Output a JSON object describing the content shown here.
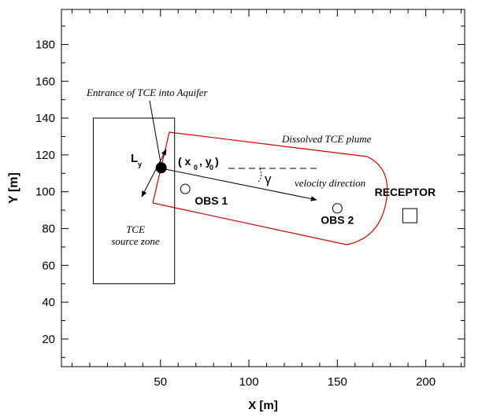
{
  "chart_data": {
    "type": "diagram",
    "xlabel": "X [m]",
    "ylabel": "Y [m]",
    "xlim": [
      -6,
      222
    ],
    "ylim": [
      5,
      199
    ],
    "xticks": [
      50,
      100,
      150,
      200
    ],
    "yticks": [
      20,
      40,
      60,
      80,
      100,
      120,
      140,
      160,
      180
    ],
    "xminorticks": [
      0,
      10,
      20,
      30,
      40,
      60,
      70,
      80,
      90,
      110,
      120,
      130,
      140,
      160,
      170,
      180,
      190,
      210,
      220
    ],
    "yminorticks": [
      10,
      30,
      50,
      70,
      90,
      110,
      130,
      150,
      170,
      190
    ],
    "source_zone": {
      "label": "TCE",
      "sublabel": "source zone",
      "x": [
        12,
        58
      ],
      "y": [
        50,
        140
      ]
    },
    "entrance": {
      "label": "Entrance of TCE into Aquifer",
      "x": 50.4,
      "y": 113
    },
    "origin_label": {
      "open": "( x",
      "sub1": "0",
      "mid": ", y",
      "sub2": "0",
      "close": " )"
    },
    "width_label": {
      "main": "L",
      "sub": "y"
    },
    "angle_label": "γ",
    "plume_label": "Dissolved TCE plume",
    "velocity_label": "velocity direction",
    "observations": [
      {
        "label": "OBS 1",
        "x": 64,
        "y": 101.5
      },
      {
        "label": "OBS 2",
        "x": 150,
        "y": 91
      }
    ],
    "receptor": {
      "label": "RECEPTOR",
      "x": 191,
      "y": 87
    }
  }
}
